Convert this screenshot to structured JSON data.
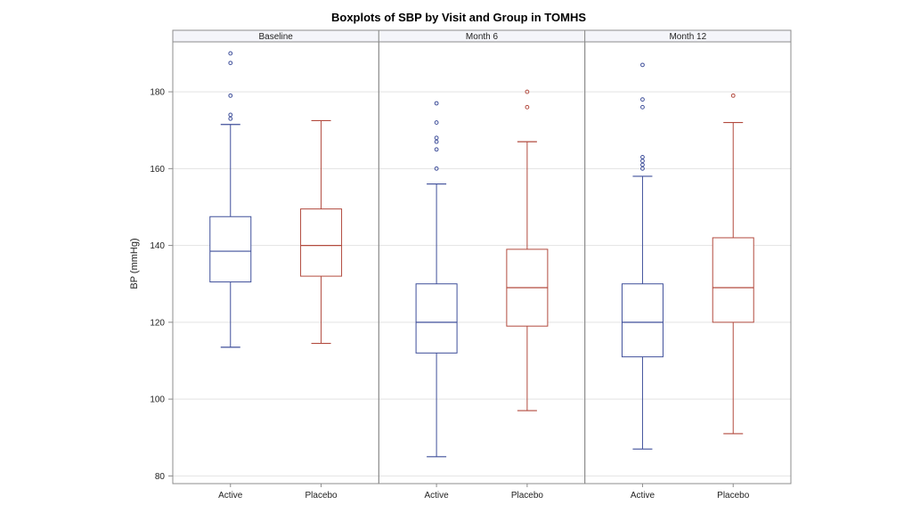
{
  "chart_data": {
    "type": "boxplot",
    "title": "Boxplots of SBP by Visit and Group in TOMHS",
    "xlabel": "",
    "ylabel": "BP (mmHg)",
    "ylim": [
      78,
      193
    ],
    "yticks": [
      80,
      100,
      120,
      140,
      160,
      180
    ],
    "grid": true,
    "categories": [
      "Active",
      "Placebo"
    ],
    "panels": [
      {
        "name": "Baseline",
        "groups": [
          {
            "category": "Active",
            "color": "#3f4f9a",
            "min": 113.5,
            "q1": 130.5,
            "median": 138.5,
            "q3": 147.5,
            "max": 171.5,
            "outliers": [
              173,
              174,
              179,
              187.5,
              190
            ]
          },
          {
            "category": "Placebo",
            "color": "#b24a3e",
            "min": 114.5,
            "q1": 132,
            "median": 140,
            "q3": 149.5,
            "max": 172.5,
            "outliers": []
          }
        ]
      },
      {
        "name": "Month 6",
        "groups": [
          {
            "category": "Active",
            "color": "#3f4f9a",
            "min": 85,
            "q1": 112,
            "median": 120,
            "q3": 130,
            "max": 156,
            "outliers": [
              160,
              165,
              167,
              168,
              172,
              177
            ]
          },
          {
            "category": "Placebo",
            "color": "#b24a3e",
            "min": 97,
            "q1": 119,
            "median": 129,
            "q3": 139,
            "max": 167,
            "outliers": [
              176,
              180
            ]
          }
        ]
      },
      {
        "name": "Month 12",
        "groups": [
          {
            "category": "Active",
            "color": "#3f4f9a",
            "min": 87,
            "q1": 111,
            "median": 120,
            "q3": 130,
            "max": 158,
            "outliers": [
              160,
              161,
              162,
              163,
              176,
              178,
              187
            ]
          },
          {
            "category": "Placebo",
            "color": "#b24a3e",
            "min": 91,
            "q1": 120,
            "median": 129,
            "q3": 142,
            "max": 172,
            "outliers": [
              179
            ]
          }
        ]
      }
    ]
  },
  "colors": {
    "active": "#3f4f9a",
    "placebo": "#b24a3e",
    "grid": "#e3e3e3",
    "frame": "#8c8c8c",
    "panel_header_bg": "#f4f5fa"
  }
}
